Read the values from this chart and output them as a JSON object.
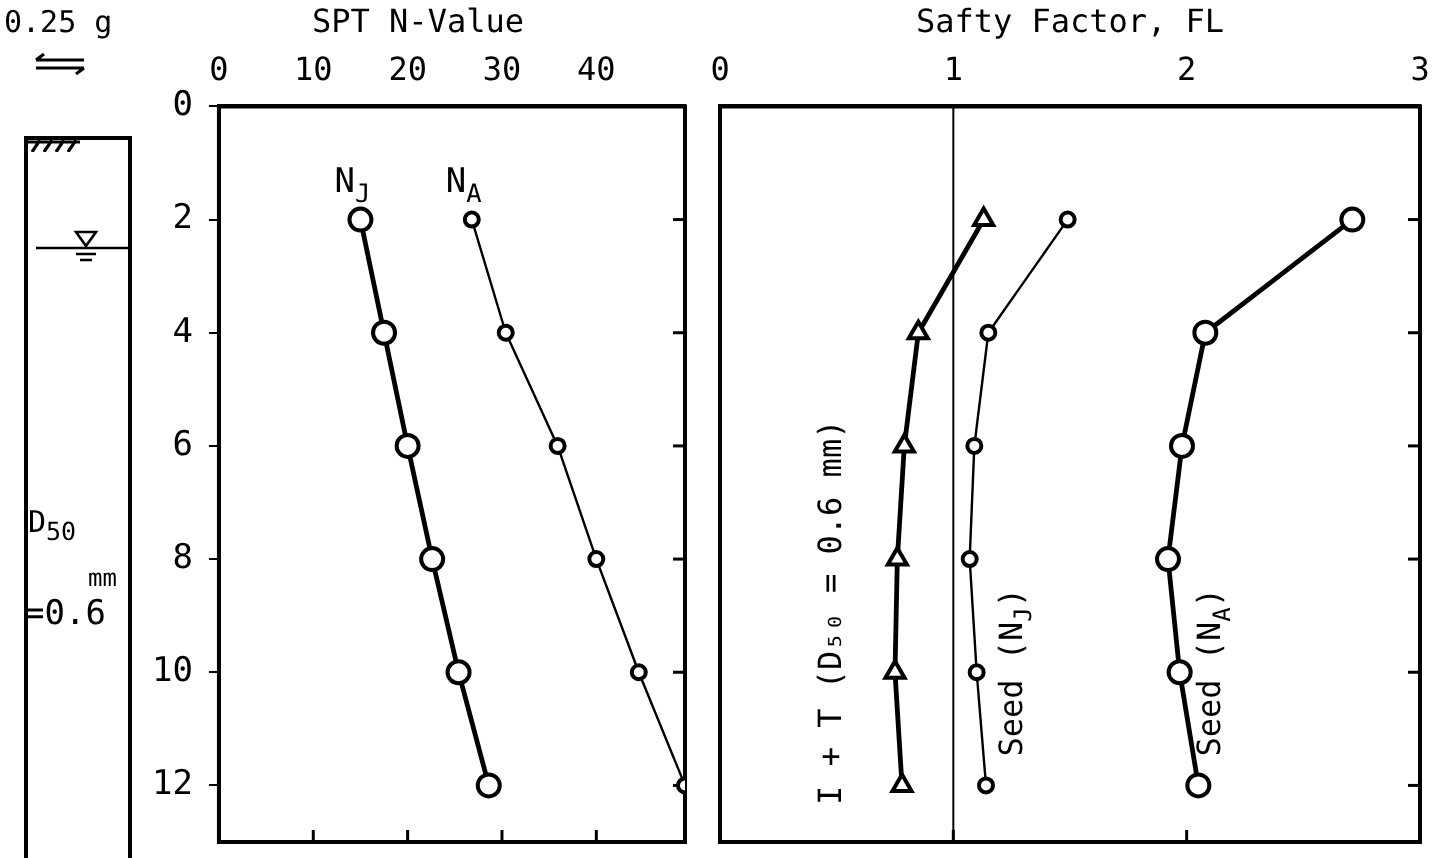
{
  "chart_data": [
    {
      "type": "line",
      "title": "SPT N-Value",
      "annotations": [
        "0.25 g",
        "D$_{50}$",
        "mm",
        "=0.6"
      ],
      "xlim": [
        0,
        49.4
      ],
      "xticks": [
        0,
        10,
        20,
        30,
        40
      ],
      "ylim": [
        13,
        0
      ],
      "yticks": [
        0,
        2,
        4,
        6,
        8,
        10,
        12
      ],
      "marker": "circle",
      "line_style": "solid",
      "series": [
        {
          "name": "N$_{J}$",
          "color": "#000000",
          "x": [
            15.0,
            17.5,
            20.0,
            22.6,
            25.4,
            28.6
          ],
          "values": [
            2,
            4,
            6,
            8,
            10,
            12
          ]
        },
        {
          "name": "N$_{A}$",
          "color": "#000000",
          "x": [
            26.8,
            30.4,
            35.9,
            40.0,
            44.5,
            49.4
          ],
          "values": [
            2,
            4,
            6,
            8,
            10,
            12
          ]
        }
      ]
    },
    {
      "type": "line",
      "title": "Safty Factor, FL",
      "xlim": [
        0,
        3
      ],
      "xticks": [
        0,
        1,
        2,
        3
      ],
      "ylim": [
        13,
        0
      ],
      "yticks": [
        0,
        2,
        4,
        6,
        8,
        10,
        12
      ],
      "tick_labels": "x",
      "line_style": "solid",
      "ref_lines": [
        {
          "axis": "x",
          "value": 1
        }
      ],
      "series": [
        {
          "name": "I + T (D₅₀ = 0.6 mm)",
          "color": "#000000",
          "marker": "triangle",
          "x": [
            1.13,
            0.85,
            0.79,
            0.76,
            0.75,
            0.78
          ],
          "values": [
            2,
            4,
            6,
            8,
            10,
            12
          ]
        },
        {
          "name": "Seed (N$_{J}$)",
          "color": "#000000",
          "marker": "circle",
          "x": [
            1.49,
            1.15,
            1.09,
            1.07,
            1.1,
            1.14
          ],
          "values": [
            2,
            4,
            6,
            8,
            10,
            12
          ]
        },
        {
          "name": "Seed (N$_{A}$)",
          "color": "#000000",
          "marker": "circle",
          "x": [
            2.71,
            2.08,
            1.98,
            1.92,
            1.97,
            2.05
          ],
          "values": [
            2,
            4,
            6,
            8,
            10,
            12
          ]
        }
      ]
    }
  ]
}
